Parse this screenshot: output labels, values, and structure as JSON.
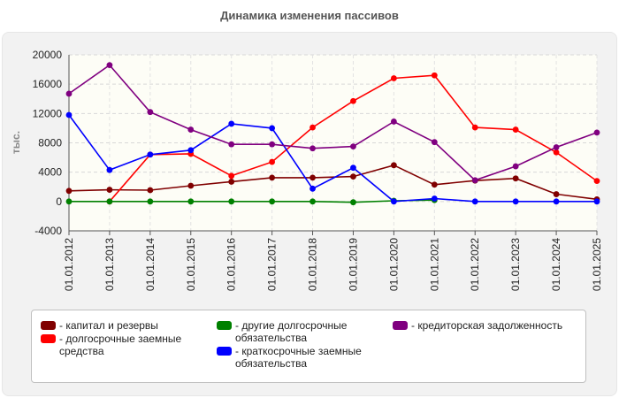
{
  "title": "Динамика изменения пассивов",
  "chart_data": {
    "type": "line",
    "title": "Динамика изменения пассивов",
    "xlabel": "",
    "ylabel": "тыс.",
    "ylim": [
      -4000,
      20000
    ],
    "yticks": [
      -4000,
      0,
      4000,
      8000,
      12000,
      16000,
      20000
    ],
    "grid": true,
    "legend_position": "bottom",
    "categories": [
      "01.01.2012",
      "01.01.2013",
      "01.01.2014",
      "01.01.2015",
      "01.01.2016",
      "01.01.2017",
      "01.01.2018",
      "01.01.2019",
      "01.01.2020",
      "01.01.2021",
      "01.01.2022",
      "01.01.2023",
      "01.01.2024",
      "01.01.2025"
    ],
    "series": [
      {
        "name": "- капитал и резервы",
        "color": "#800000",
        "values": [
          1450,
          1600,
          1550,
          2150,
          2700,
          3250,
          3250,
          3400,
          4950,
          2300,
          2850,
          3150,
          1000,
          300
        ]
      },
      {
        "name": "- долгосрочные заемные средства",
        "color": "#ff0000",
        "values": [
          null,
          0,
          6400,
          6500,
          3500,
          5400,
          10100,
          13700,
          16800,
          17200,
          10100,
          9800,
          6700,
          2800
        ]
      },
      {
        "name": "- другие долгосрочные обязательства",
        "color": "#008000",
        "values": [
          0,
          0,
          0,
          0,
          0,
          0,
          0,
          -100,
          100,
          200,
          null,
          null,
          null,
          null
        ]
      },
      {
        "name": "- краткосрочные заемные обязательства",
        "color": "#0000ff",
        "values": [
          11800,
          4300,
          6400,
          7000,
          10600,
          10000,
          1750,
          4600,
          0,
          400,
          0,
          0,
          0,
          0
        ]
      },
      {
        "name": "- кредиторская задолженность",
        "color": "#800080",
        "values": [
          14700,
          18600,
          12200,
          9800,
          7800,
          7800,
          7250,
          7500,
          10900,
          8100,
          2900,
          4800,
          7400,
          9400
        ]
      }
    ]
  },
  "legend": [
    {
      "label": "- капитал и резервы",
      "color": "#800000"
    },
    {
      "label": "- долгосрочные заемные средства",
      "color": "#ff0000"
    },
    {
      "label": "- другие долгосрочные обязательства",
      "color": "#008000"
    },
    {
      "label": "- краткосрочные заемные обязательства",
      "color": "#0000ff"
    },
    {
      "label": "- кредиторская задолженность",
      "color": "#800080"
    }
  ]
}
